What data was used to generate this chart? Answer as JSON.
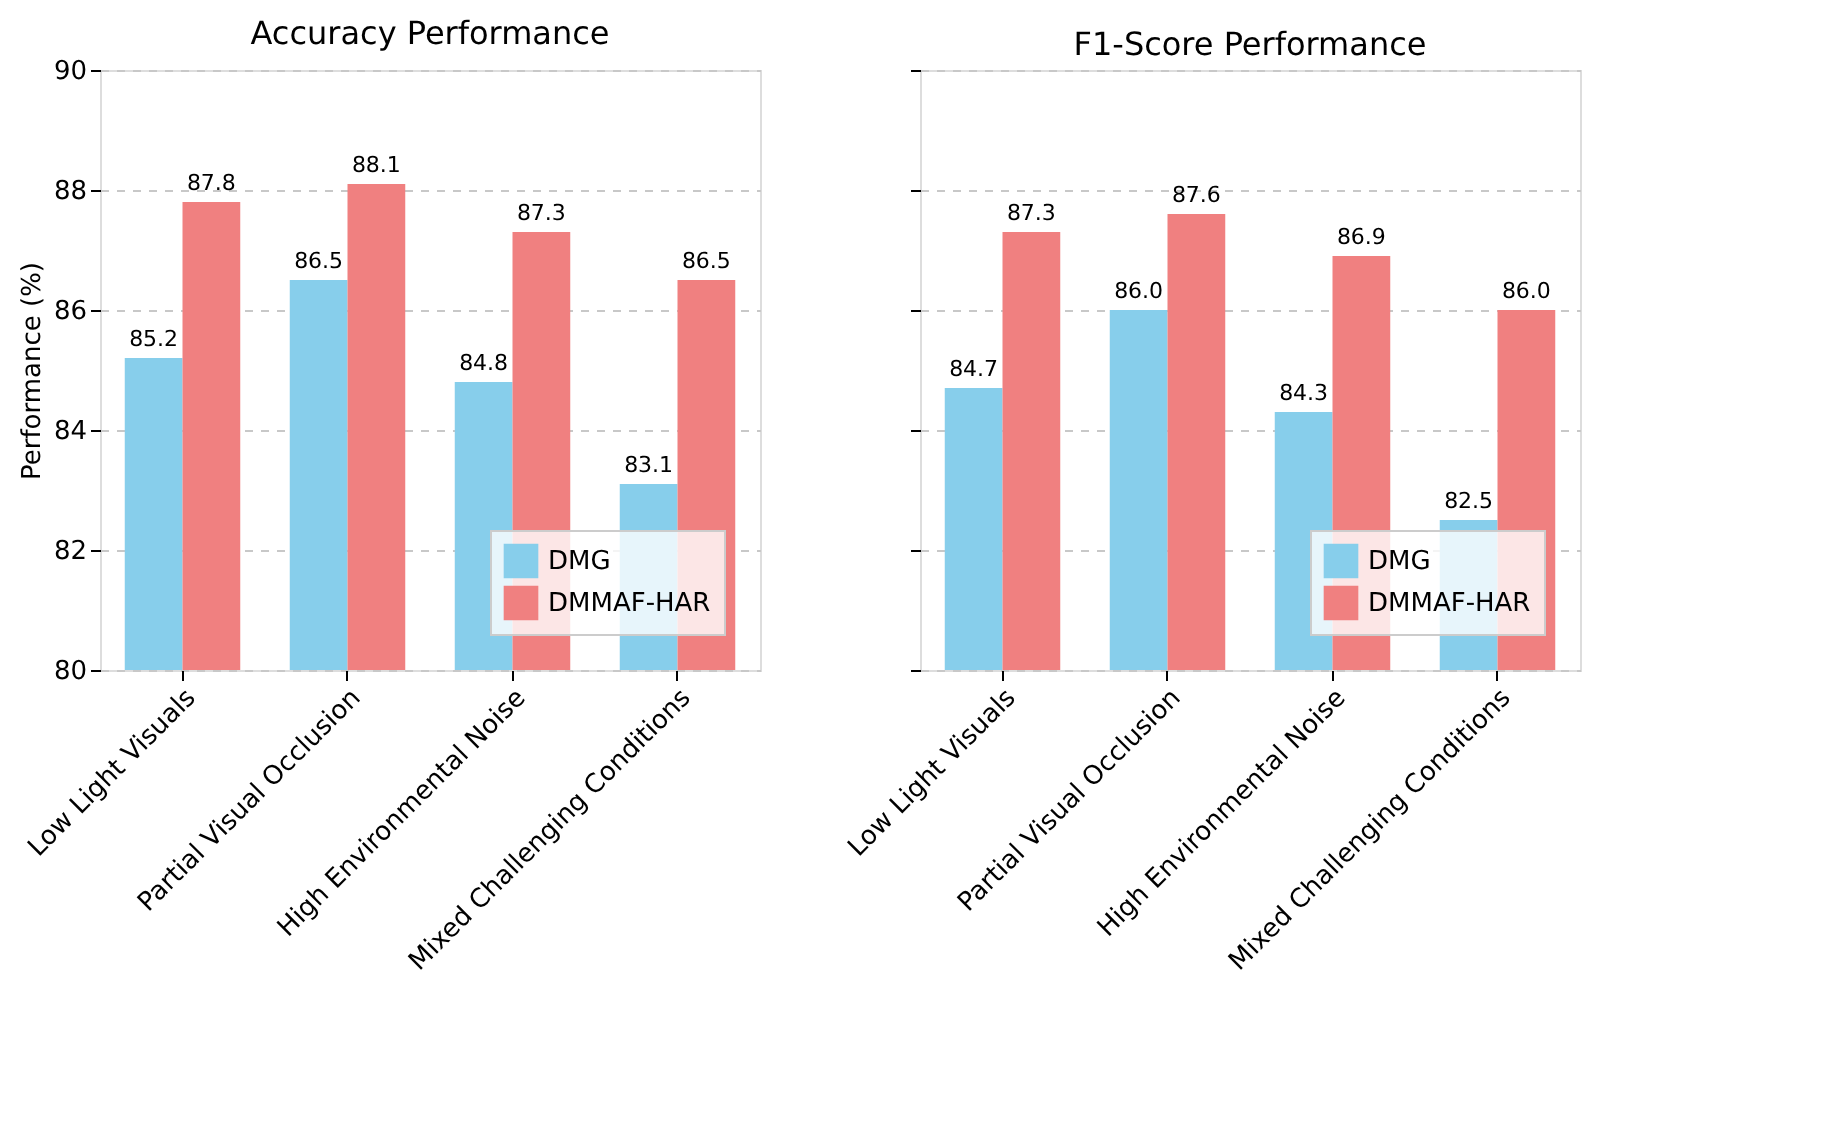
{
  "chart_data": [
    {
      "type": "bar",
      "title": "Accuracy Performance",
      "ylabel": "Performance (%)",
      "categories": [
        "Low Light Visuals",
        "Partial Visual Occlusion",
        "High Environmental Noise",
        "Mixed Challenging Conditions"
      ],
      "series": [
        {
          "name": "DMG",
          "color": "#87ceeb",
          "values": [
            85.2,
            86.5,
            84.8,
            83.1
          ],
          "value_labels": [
            "85.2",
            "86.5",
            "84.8",
            "83.1"
          ]
        },
        {
          "name": "DMMAF-HAR",
          "color": "#f08080",
          "values": [
            87.8,
            88.1,
            87.3,
            86.5
          ],
          "value_labels": [
            "87.8",
            "88.1",
            "87.3",
            "86.5"
          ]
        }
      ],
      "ylim": [
        80,
        90
      ],
      "yticks": [
        80,
        82,
        84,
        86,
        88,
        90
      ],
      "grid": "y",
      "legend": "bottom right"
    },
    {
      "type": "bar",
      "title": "F1-Score Performance",
      "categories": [
        "Low Light Visuals",
        "Partial Visual Occlusion",
        "High Environmental Noise",
        "Mixed Challenging Conditions"
      ],
      "series": [
        {
          "name": "DMG",
          "color": "#87ceeb",
          "values": [
            84.7,
            86.0,
            84.3,
            82.5
          ],
          "value_labels": [
            "84.7",
            "86.0",
            "84.3",
            "82.5"
          ]
        },
        {
          "name": "DMMAF-HAR",
          "color": "#f08080",
          "values": [
            87.3,
            87.6,
            86.9,
            86.0
          ],
          "value_labels": [
            "87.3",
            "87.6",
            "86.9",
            "86.0"
          ]
        }
      ],
      "ylim": [
        80,
        90
      ],
      "yticks": [
        80,
        82,
        84,
        86,
        88,
        90
      ],
      "grid": "y",
      "legend": "bottom right",
      "tick_labels": "x"
    }
  ]
}
